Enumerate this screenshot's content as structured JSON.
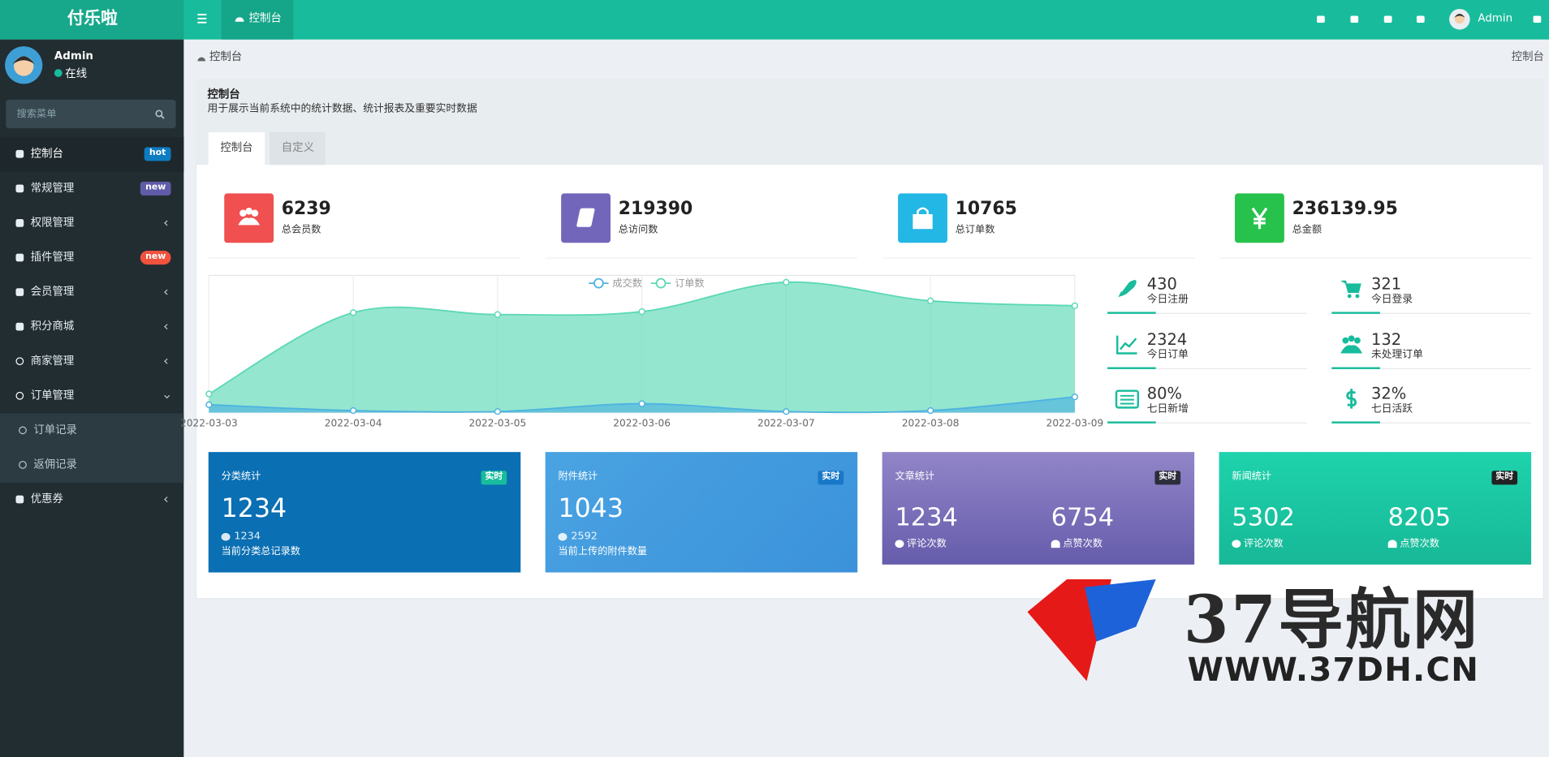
{
  "header": {
    "logo": "付乐啦",
    "tab": "控制台",
    "user": "Admin"
  },
  "sidebar": {
    "user": "Admin",
    "status": "在线",
    "search": "搜索菜单",
    "menu": [
      {
        "label": "控制台",
        "badge": "hot"
      },
      {
        "label": "常规管理",
        "badge": "new"
      },
      {
        "label": "权限管理"
      },
      {
        "label": "插件管理",
        "badge": "new"
      },
      {
        "label": "会员管理"
      },
      {
        "label": "积分商城"
      },
      {
        "label": "商家管理"
      },
      {
        "label": "订单管理",
        "children": [
          "订单记录",
          "返佣记录"
        ]
      },
      {
        "label": "优惠券"
      }
    ]
  },
  "breadcrumb": {
    "left": "控制台",
    "right": "控制台"
  },
  "panel": {
    "title": "控制台",
    "description": "用于展示当前系统中的统计数据、统计报表及重要实时数据",
    "tabs": [
      "控制台",
      "自定义"
    ]
  },
  "stats": [
    {
      "value": 6239,
      "label": "总会员数"
    },
    {
      "value": 219390,
      "label": "总访问数"
    },
    {
      "value": 10765,
      "label": "总订单数"
    },
    {
      "value": 236139.95,
      "label": "总金额"
    }
  ],
  "chart_data": {
    "type": "area",
    "categories": [
      "2022-03-03",
      "2022-03-04",
      "2022-03-05",
      "2022-03-06",
      "2022-03-07",
      "2022-03-08",
      "2022-03-09"
    ],
    "series": [
      {
        "name": "成交数",
        "color": "#4db3e0",
        "values": [
          80,
          20,
          10,
          90,
          10,
          20,
          160
        ]
      },
      {
        "name": "订单数",
        "color": "#5cd8b5",
        "values": [
          190,
          1020,
          1000,
          1030,
          1330,
          1140,
          1090
        ]
      }
    ],
    "ylim": [
      0,
      1400
    ]
  },
  "mini_stats": [
    {
      "value": 430,
      "label": "今日注册"
    },
    {
      "value": 321,
      "label": "今日登录"
    },
    {
      "value": 2324,
      "label": "今日订单"
    },
    {
      "value": 132,
      "label": "未处理订单"
    },
    {
      "value": "80%",
      "label": "七日新增"
    },
    {
      "value": "32%",
      "label": "七日活跃"
    }
  ],
  "cards": [
    {
      "title": "分类统计",
      "badge": "实时",
      "value": 1234,
      "sub_value": 1234,
      "sub_label": "当前分类总记录数"
    },
    {
      "title": "附件统计",
      "badge": "实时",
      "value": 1043,
      "sub_value": 2592,
      "sub_label": "当前上传的附件数量"
    },
    {
      "title": "文章统计",
      "badge": "实时",
      "items": [
        {
          "value": 1234,
          "label": "评论次数"
        },
        {
          "value": 6754,
          "label": "点赞次数"
        }
      ]
    },
    {
      "title": "新闻统计",
      "badge": "实时",
      "items": [
        {
          "value": 5302,
          "label": "评论次数"
        },
        {
          "value": 8205,
          "label": "点赞次数"
        }
      ]
    }
  ],
  "watermark": {
    "title": "37导航网",
    "url": "WWW.37DH.CN"
  }
}
